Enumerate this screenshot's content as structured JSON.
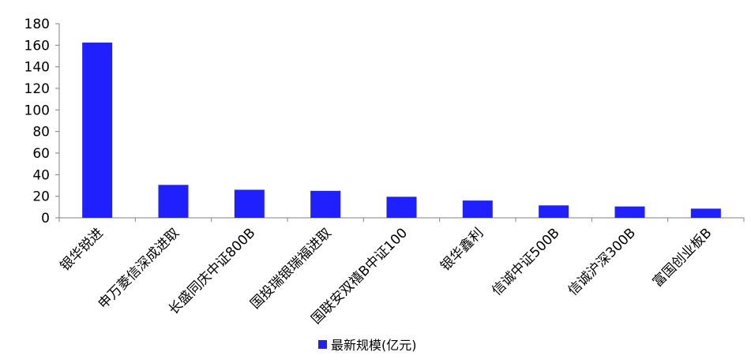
{
  "chart_data": {
    "type": "bar",
    "title": "",
    "xlabel": "",
    "ylabel": "",
    "categories": [
      "银华锐进",
      "申万菱信深成进取",
      "长盛同庆中证800B",
      "国投瑞银瑞福进取",
      "国联安双禧B中证100",
      "银华鑫利",
      "信诚中证500B",
      "信诚沪深300B",
      "富国创业板B"
    ],
    "series": [
      {
        "name": "最新规模(亿元)",
        "color": "#2020ff",
        "values": [
          162.5,
          30.5,
          26,
          25,
          19.5,
          16,
          11.5,
          10.5,
          8.5
        ]
      }
    ],
    "ylim": [
      0,
      180
    ],
    "yticks": [
      "0",
      "20",
      "40",
      "60",
      "80",
      "100",
      "120",
      "140",
      "160",
      "180"
    ],
    "grid": false,
    "legend_position": "bottom-center"
  }
}
